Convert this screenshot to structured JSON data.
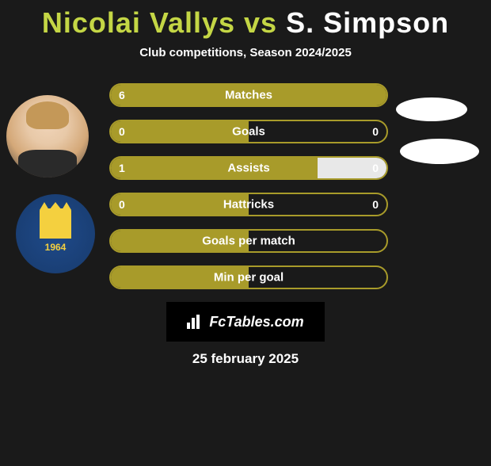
{
  "title": {
    "p1": "Nicolai Vallys",
    "vs": "vs",
    "p2": "S. Simpson"
  },
  "subtitle": "Club competitions, Season 2024/2025",
  "colors": {
    "accent_left": "#a89b2a",
    "accent_right": "#e8e8e8",
    "title_highlight": "#c4d645",
    "background": "#1a1a1a",
    "text": "#ffffff"
  },
  "crest1_year": "1964",
  "stats": [
    {
      "label": "Matches",
      "left_val": "6",
      "right_val": "",
      "left_pct": 100,
      "right_pct": 0
    },
    {
      "label": "Goals",
      "left_val": "0",
      "right_val": "0",
      "left_pct": 50,
      "right_pct": 0
    },
    {
      "label": "Assists",
      "left_val": "1",
      "right_val": "0",
      "left_pct": 75,
      "right_pct": 25
    },
    {
      "label": "Hattricks",
      "left_val": "0",
      "right_val": "0",
      "left_pct": 50,
      "right_pct": 0
    },
    {
      "label": "Goals per match",
      "left_val": "",
      "right_val": "",
      "left_pct": 50,
      "right_pct": 0
    },
    {
      "label": "Min per goal",
      "left_val": "",
      "right_val": "",
      "left_pct": 50,
      "right_pct": 0
    }
  ],
  "footer_brand": "FcTables.com",
  "footer_date": "25 february 2025"
}
